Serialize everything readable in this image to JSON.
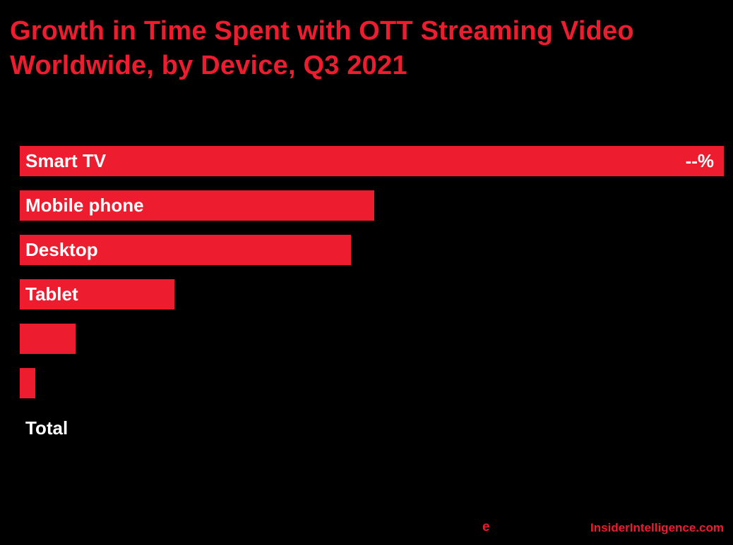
{
  "colors": {
    "background": "#000000",
    "accent_red": "#ED1C2E",
    "label_white": "#FFFFFF"
  },
  "title": {
    "text": "Growth in Time Spent with OTT Streaming Video Worldwide, by Device, Q3 2021"
  },
  "chart_data": {
    "type": "bar",
    "orientation": "horizontal",
    "title": "Growth in Time Spent with OTT Streaming Video Worldwide, by Device, Q3 2021",
    "categories": [
      "Smart TV",
      "Mobile phone",
      "Desktop",
      "Tablet",
      "",
      "",
      "Total"
    ],
    "values_hidden": true,
    "value_labels": [
      "--%",
      "",
      "",
      "",
      "",
      "",
      ""
    ],
    "bar_length_pct_of_max": [
      100,
      50.4,
      47,
      22,
      7.9,
      2.1,
      0
    ],
    "bar_color": "#ED1C2E",
    "label_position": "inside-left",
    "grid": false,
    "legend": "none",
    "background": "#000000"
  },
  "footer": {
    "emarketer_mark": "e",
    "site": "InsiderIntelligence.com"
  }
}
